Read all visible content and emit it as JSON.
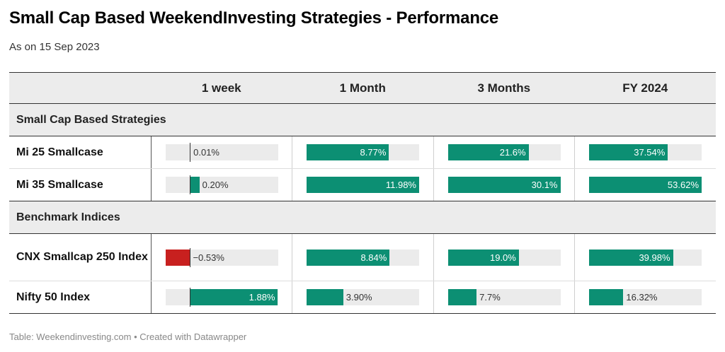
{
  "header": {
    "title": "Small Cap Based WeekendInvesting Strategies - Performance",
    "subtitle": "As on 15 Sep 2023"
  },
  "footer": {
    "text": "Table: Weekendinvesting.com • Created with Datawrapper"
  },
  "colors": {
    "positive": "#0c8f73",
    "negative": "#c8201f",
    "track": "#ebebeb",
    "header_bg": "#ececec"
  },
  "chart_data": {
    "type": "table",
    "title": "Small Cap Based WeekendInvesting Strategies - Performance",
    "subtitle": "As on 15 Sep 2023",
    "columns": [
      "1 week",
      "1 Month",
      "3 Months",
      "FY 2024"
    ],
    "column_ranges": [
      [
        -0.53,
        1.88
      ],
      [
        0,
        11.98
      ],
      [
        0,
        30.1
      ],
      [
        0,
        53.62
      ]
    ],
    "groups": [
      {
        "name": "Small Cap Based Strategies",
        "rows": [
          {
            "name": "Mi 25 Smallcase",
            "values": [
              0.01,
              8.77,
              21.6,
              37.54
            ],
            "labels": [
              "0.01%",
              "8.77%",
              "21.6%",
              "37.54%"
            ]
          },
          {
            "name": "Mi 35 Smallcase",
            "values": [
              0.2,
              11.98,
              30.1,
              53.62
            ],
            "labels": [
              "0.20%",
              "11.98%",
              "30.1%",
              "53.62%"
            ]
          }
        ]
      },
      {
        "name": "Benchmark Indices",
        "rows": [
          {
            "name": "CNX Smallcap 250 Index",
            "values": [
              -0.53,
              8.84,
              19.0,
              39.98
            ],
            "labels": [
              "−0.53%",
              "8.84%",
              "19.0%",
              "39.98%"
            ]
          },
          {
            "name": "Nifty 50 Index",
            "values": [
              1.88,
              3.9,
              7.7,
              16.32
            ],
            "labels": [
              "1.88%",
              "3.90%",
              "7.7%",
              "16.32%"
            ]
          }
        ]
      }
    ]
  }
}
